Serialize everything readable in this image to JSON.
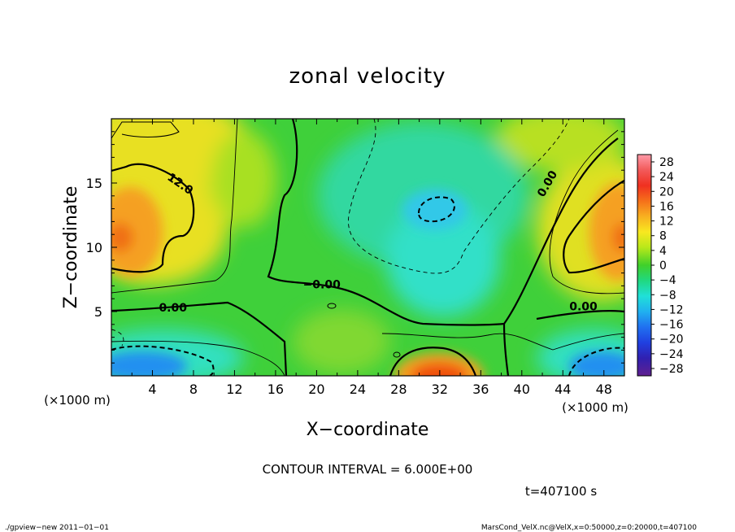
{
  "chart_data": {
    "type": "heatmap",
    "title": "zonal velocity",
    "xlabel": "X−coordinate",
    "ylabel": "Z−coordinate",
    "x_unit": "(×1000 m)",
    "y_unit": "(×1000 m)",
    "xlim": [
      0,
      50
    ],
    "ylim": [
      0,
      20
    ],
    "x_ticks": [
      4,
      8,
      12,
      16,
      20,
      24,
      28,
      32,
      36,
      40,
      44,
      48
    ],
    "y_ticks": [
      5,
      10,
      15
    ],
    "colorbar_levels": [
      28,
      24,
      20,
      16,
      12,
      8,
      4,
      0,
      -4,
      -8,
      -12,
      -16,
      -20,
      -24,
      -28
    ],
    "colorbar_labels": [
      "28",
      "24",
      "20",
      "16",
      "12",
      "8",
      "4",
      "0",
      "−4",
      "−8",
      "−12",
      "−16",
      "−20",
      "−24",
      "−28"
    ],
    "contour_interval_text": "CONTOUR INTERVAL = 6.000E+00",
    "contour_labels": [
      {
        "text": "12.0",
        "x": 6.5,
        "z": 14.7
      },
      {
        "text": "0.00",
        "x": 42.8,
        "z": 14.8
      },
      {
        "text": "−0.00",
        "x": 20.5,
        "z": 6.8
      },
      {
        "text": "0.00",
        "x": 6.0,
        "z": 5.0
      },
      {
        "text": "0.00",
        "x": 46.0,
        "z": 5.1
      }
    ],
    "features": [
      {
        "name": "positive max upper-left",
        "x": 1.5,
        "z": 10.5,
        "value": 18
      },
      {
        "name": "positive max right",
        "x": 48.5,
        "z": 10.5,
        "value": 16
      },
      {
        "name": "positive max bottom-center",
        "x": 32.5,
        "z": 0.3,
        "value": 20
      },
      {
        "name": "negative min center",
        "x": 31.5,
        "z": 13.0,
        "value": -9
      },
      {
        "name": "negative min lower-left",
        "x": 3.0,
        "z": 1.0,
        "value": -12
      },
      {
        "name": "negative min lower-right",
        "x": 48.0,
        "z": 1.0,
        "value": -12
      }
    ],
    "time_text": "t=407100 s",
    "footer_left": "./gpview−new   2011−01−01",
    "footer_right": "MarsCond_VelX.nc@VelX,x=0:50000,z=0:20000,t=407100"
  }
}
